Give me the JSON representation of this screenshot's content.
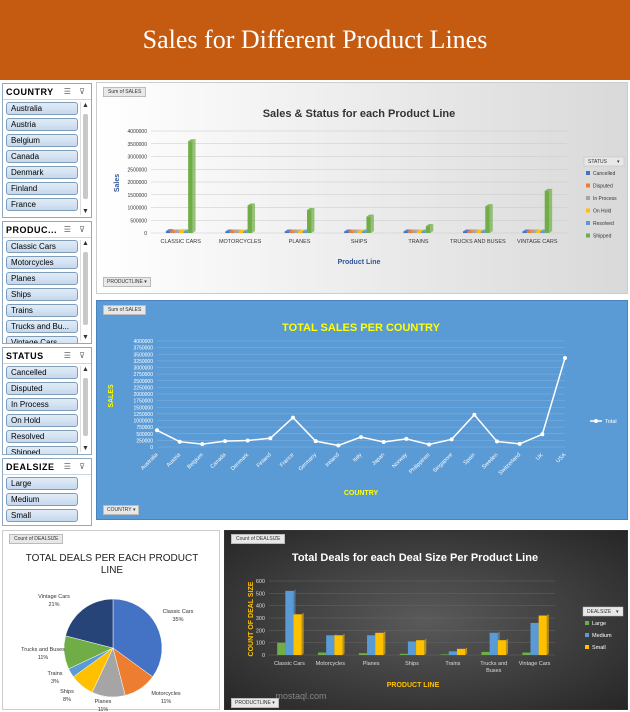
{
  "banner_title": "Sales for Different Product Lines",
  "slicers": [
    {
      "title": "COUNTRY",
      "items": [
        "Australia",
        "Austria",
        "Belgium",
        "Canada",
        "Denmark",
        "Finland",
        "France"
      ]
    },
    {
      "title": "PRODUC...",
      "items": [
        "Classic Cars",
        "Motorcycles",
        "Planes",
        "Ships",
        "Trains",
        "Trucks and Bu...",
        "Vintage Cars"
      ]
    },
    {
      "title": "STATUS",
      "items": [
        "Cancelled",
        "Disputed",
        "In Process",
        "On Hold",
        "Resolved",
        "Shipped"
      ]
    },
    {
      "title": "DEALSIZE",
      "items": [
        "Large",
        "Medium",
        "Small"
      ]
    }
  ],
  "chart1": {
    "field_tag": "Sum of SALES",
    "filter_tag": "PRODUCTLINE",
    "legend_tag": "STATUS",
    "colors": {
      "Cancelled": "#4472c4",
      "Disputed": "#ed7d31",
      "In Process": "#a5a5a5",
      "On Hold": "#ffc000",
      "Resolved": "#5b9bd5",
      "Shipped": "#70ad47"
    },
    "chart_data": {
      "type": "bar",
      "title": "Sales & Status for each Product Line",
      "xlabel": "Product Line",
      "ylabel": "Sales",
      "ylim": [
        0,
        4000000
      ],
      "yticks": [
        "0",
        "500000",
        "1000000",
        "1500000",
        "2000000",
        "2500000",
        "3000000",
        "3500000",
        "4000000"
      ],
      "categories": [
        "CLASSIC CARS",
        "MOTORCYCLES",
        "PLANES",
        "SHIPS",
        "TRAINS",
        "TRUCKS AND BUSES",
        "VINTAGE CARS"
      ],
      "series": [
        {
          "name": "Cancelled",
          "values": [
            75000,
            0,
            60000,
            45000,
            0,
            55000,
            40000
          ]
        },
        {
          "name": "Disputed",
          "values": [
            60000,
            50000,
            0,
            40000,
            0,
            0,
            30000
          ]
        },
        {
          "name": "In Process",
          "values": [
            50000,
            40000,
            30000,
            30000,
            0,
            40000,
            35000
          ]
        },
        {
          "name": "On Hold",
          "values": [
            80000,
            0,
            30000,
            0,
            0,
            0,
            40000
          ]
        },
        {
          "name": "Resolved",
          "values": [
            60000,
            30000,
            40000,
            30000,
            15000,
            25000,
            50000
          ]
        },
        {
          "name": "Shipped",
          "values": [
            3600000,
            1080000,
            900000,
            640000,
            270000,
            1050000,
            1650000
          ]
        }
      ]
    }
  },
  "chart2": {
    "field_tag": "Sum of SALES",
    "filter_tag": "COUNTRY",
    "chart_data": {
      "type": "line",
      "title": "TOTAL SALES PER COUNTRY",
      "xlabel": "COUNTRY",
      "ylabel": "SALES",
      "ylim": [
        0,
        4000000
      ],
      "yticks": [
        "0",
        "250000",
        "500000",
        "750000",
        "1000000",
        "1250000",
        "1500000",
        "1750000",
        "2000000",
        "2250000",
        "2500000",
        "2750000",
        "3000000",
        "3250000",
        "3500000",
        "3750000",
        "4000000"
      ],
      "categories": [
        "Australia",
        "Austria",
        "Belgium",
        "Canada",
        "Denmark",
        "Finland",
        "France",
        "Germany",
        "Ireland",
        "Italy",
        "Japan",
        "Norway",
        "Philippines",
        "Singapore",
        "Spain",
        "Sweden",
        "Switzerland",
        "UK",
        "USA"
      ],
      "series": [
        {
          "name": "Total",
          "values": [
            630000,
            200000,
            110000,
            220000,
            245000,
            330000,
            1110000,
            220000,
            58000,
            375000,
            190000,
            307000,
            95000,
            290000,
            1215000,
            210000,
            117000,
            479000,
            3360000
          ]
        }
      ]
    }
  },
  "chart3": {
    "field_tag": "Count of DEALSIZE",
    "colors": [
      "#4472c4",
      "#ed7d31",
      "#a5a5a5",
      "#ffc000",
      "#5b9bd5",
      "#70ad47",
      "#264478"
    ],
    "chart_data": {
      "type": "pie",
      "title": "TOTAL DEALS PER EACH PRODUCT LINE",
      "categories": [
        "Classic Cars",
        "Motorcycles",
        "Planes",
        "Ships",
        "Trains",
        "Trucks and Buses",
        "Vintage Cars"
      ],
      "values": [
        35,
        11,
        11,
        8,
        3,
        11,
        21
      ],
      "labels": [
        "35%",
        "11%",
        "11%",
        "8%",
        "3%",
        "11%",
        "21%"
      ]
    }
  },
  "chart4": {
    "field_tag": "Count of DEALSIZE",
    "filter_tag": "PRODUCTLINE",
    "legend_tag": "DEALSIZE",
    "watermark": "mostaql.com",
    "colors": {
      "Large": "#70ad47",
      "Medium": "#5b9bd5",
      "Small": "#ffc000"
    },
    "chart_data": {
      "type": "bar",
      "title": "Total Deals for each Deal Size Per Product Line",
      "xlabel": "PRODUCT LINE",
      "ylabel": "COUNT OF DEAL SIZE",
      "ylim": [
        0,
        600
      ],
      "yticks": [
        "0",
        "100",
        "200",
        "300",
        "400",
        "500",
        "600"
      ],
      "categories": [
        "Classic Cars",
        "Motorcycles",
        "Planes",
        "Ships",
        "Trains",
        "Trucks and Buses",
        "Vintage Cars"
      ],
      "series": [
        {
          "name": "Large",
          "values": [
            100,
            20,
            15,
            10,
            5,
            25,
            20
          ]
        },
        {
          "name": "Medium",
          "values": [
            520,
            160,
            160,
            110,
            30,
            180,
            260
          ]
        },
        {
          "name": "Small",
          "values": [
            330,
            160,
            180,
            120,
            50,
            120,
            320
          ]
        }
      ]
    }
  }
}
